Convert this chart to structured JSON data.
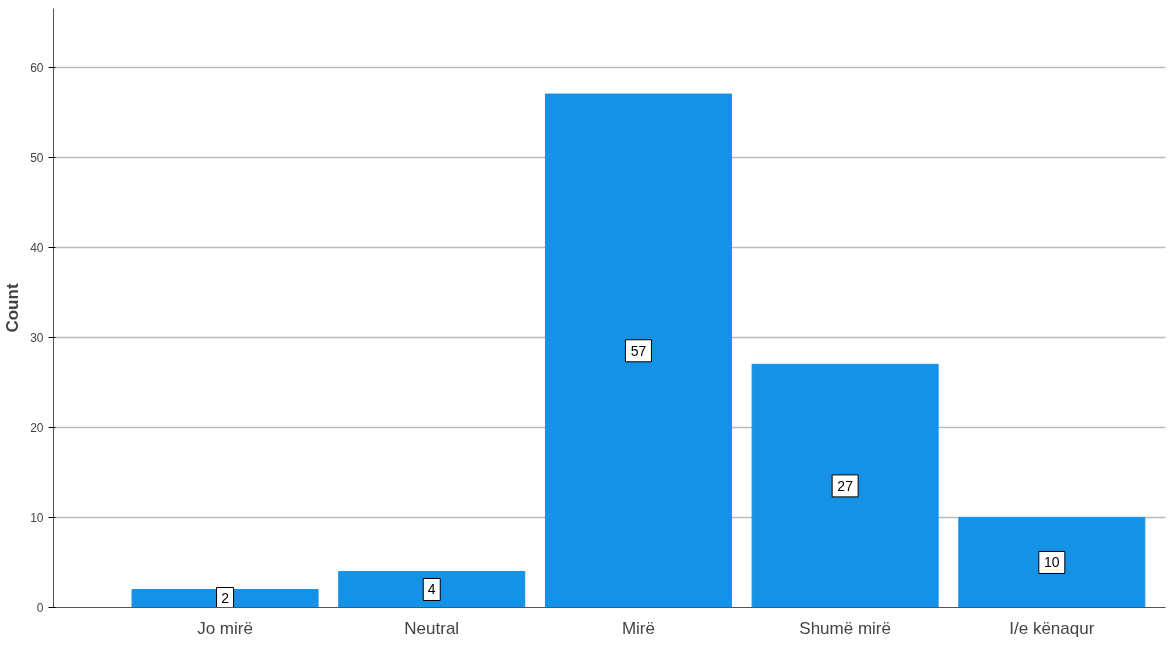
{
  "chart_data": {
    "type": "bar",
    "ylabel": "Count",
    "categories": [
      "Jo mirë",
      "Neutral",
      "Mirë",
      "Shumë mirë",
      "I/e kënaqur"
    ],
    "values": [
      2,
      4,
      57,
      27,
      10
    ],
    "color": "#1591e6",
    "ylim": [
      0,
      66.5
    ],
    "yticks": [
      0,
      10,
      20,
      30,
      40,
      50,
      60
    ],
    "grid": "y",
    "data_labels": true
  }
}
